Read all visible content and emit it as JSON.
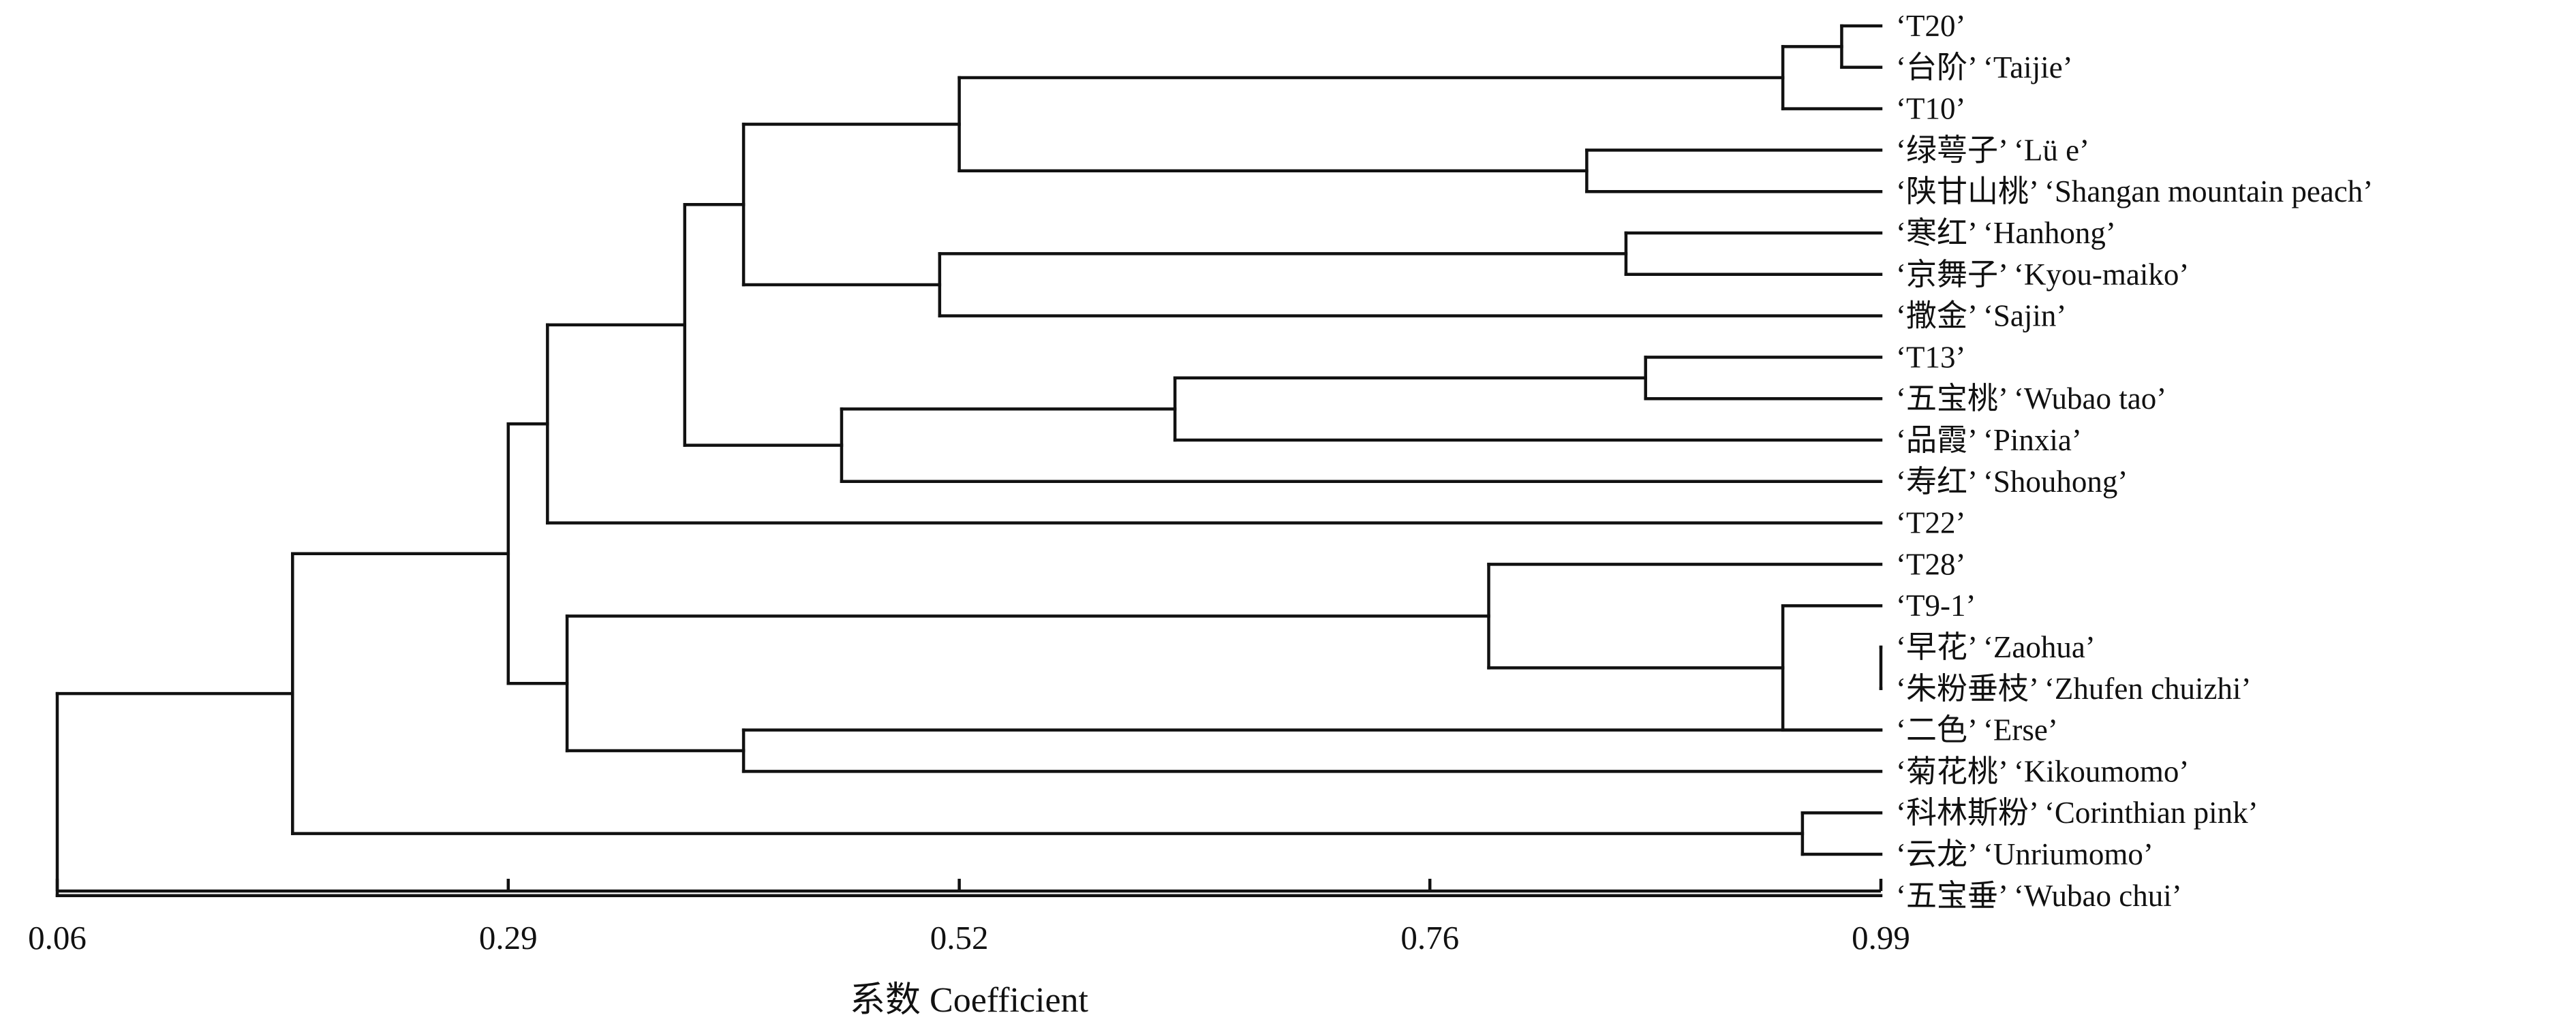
{
  "leaves": [
    "‘T20’",
    "‘台阶’ ‘Taijie’",
    "‘T10’",
    "‘绿萼子’ ‘Lü e’",
    "‘陕甘山桃’ ‘Shangan mountain peach’",
    "‘寒红’ ‘Hanhong’",
    "‘京舞子’ ‘Kyou-maiko’",
    "‘撒金’ ‘Sajin’",
    "‘T13’",
    "‘五宝桃’ ‘Wubao tao’",
    "‘品霞’ ‘Pinxia’",
    "‘寿红’ ‘Shouhong’",
    "‘T22’",
    "‘T28’",
    "‘T9-1’",
    "‘早花’ ‘Zaohua’",
    "‘朱粉垂枝’ ‘Zhufen chuizhi’",
    "‘二色’ ‘Erse’",
    "‘菊花桃’ ‘Kikoumomo’",
    "‘科林斯粉’ ‘Corinthian pink’",
    "‘云龙’ ‘Unriumomo’",
    "‘五宝垂’ ‘Wubao chui’"
  ],
  "merges": [
    {
      "a": 0,
      "b": 1,
      "coef": 0.97
    },
    {
      "a": 16,
      "b": 15,
      "coef": 0.99
    },
    {
      "a": 19,
      "b": 20,
      "coef": 0.95
    },
    {
      "a": 17,
      "b": 14,
      "coef": 0.94
    },
    {
      "a": 22,
      "b": 2,
      "coef": 0.94
    },
    {
      "a": 8,
      "b": 9,
      "coef": 0.87
    },
    {
      "a": 5,
      "b": 6,
      "coef": 0.86
    },
    {
      "a": 3,
      "b": 4,
      "coef": 0.84
    },
    {
      "a": 13,
      "b": 25,
      "coef": 0.79
    },
    {
      "a": 27,
      "b": 10,
      "coef": 0.63
    },
    {
      "a": 28,
      "b": 7,
      "coef": 0.51
    },
    {
      "a": 26,
      "b": 29,
      "coef": 0.52
    },
    {
      "a": 31,
      "b": 11,
      "coef": 0.46
    },
    {
      "a": 18,
      "b": 17,
      "coef": 0.41
    },
    {
      "a": 33,
      "b": 32,
      "coef": 0.41
    },
    {
      "a": 36,
      "b": 34,
      "coef": 0.38
    },
    {
      "a": 37,
      "b": 12,
      "coef": 0.31
    },
    {
      "a": 30,
      "b": 35,
      "coef": 0.32
    },
    {
      "a": 38,
      "b": 39,
      "coef": 0.29
    },
    {
      "a": 40,
      "b": 24,
      "coef": 0.18
    },
    {
      "a": 41,
      "b": 21,
      "coef": 0.06
    }
  ],
  "axis": {
    "min": 0.06,
    "max": 0.99,
    "ticks": [
      0.06,
      0.29,
      0.52,
      0.76,
      0.99
    ],
    "tick_labels": [
      "0.06",
      "0.29",
      "0.52",
      "0.76",
      "0.99"
    ],
    "title": "系数 Coefficient"
  }
}
